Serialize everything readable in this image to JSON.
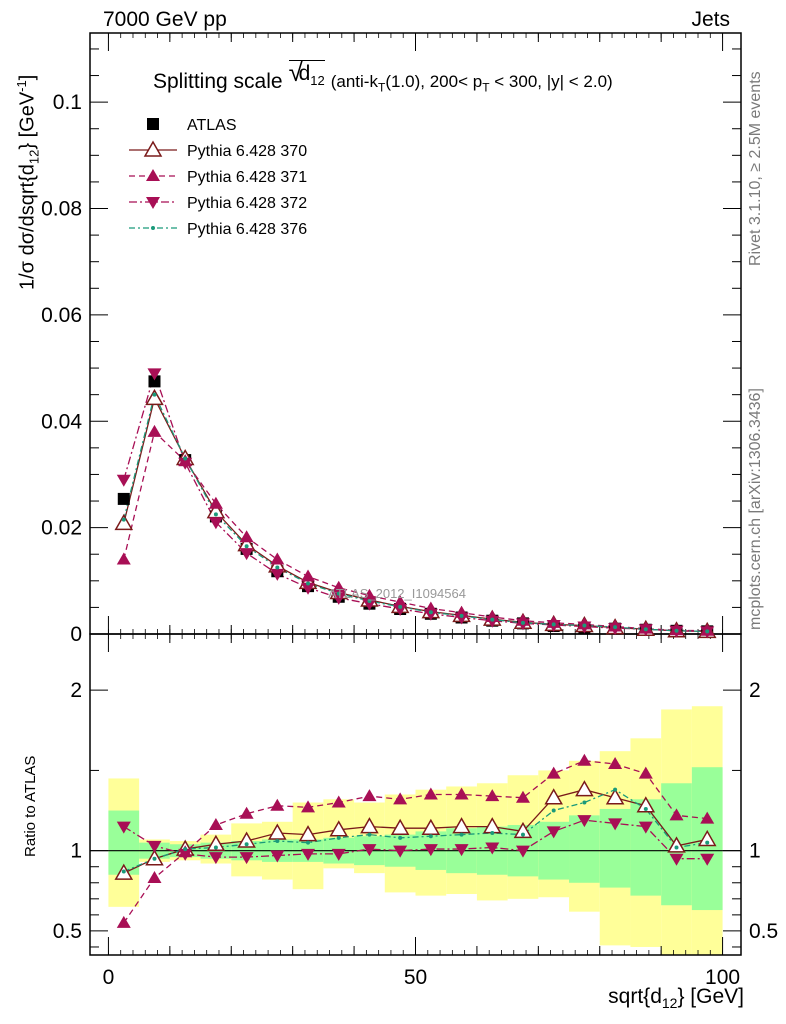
{
  "header": {
    "left": "7000 GeV pp",
    "right": "Jets"
  },
  "side_labels": {
    "rivet": "Rivet 3.1.10, ≥ 2.5M events",
    "mcplots": "mcplots.cern.ch [arXiv:1306.3436]"
  },
  "watermark": "ATLAS_2012_I1094564",
  "colors": {
    "atlas": "#000000",
    "p370": "#7a1a1a",
    "p371": "#a80f55",
    "p372": "#a80f55",
    "p376": "#1a9a7a",
    "band_inner": "#99ff99",
    "band_outer": "#ffff99"
  },
  "chart_data": {
    "type": "line",
    "title": {
      "main": "Splitting scale",
      "sqrt_arg": "d",
      "sqrt_sub": "12",
      "details_pre": "(anti-k",
      "kt_sub": "T",
      "details_mid": "(1.0), 200< p",
      "pt_sub": "T",
      "details_post": " < 300, |y| < 2.0)"
    },
    "xlabel": {
      "main": "sqrt{d",
      "sub": "12",
      "post": "} [GeV]"
    },
    "ylabel": {
      "main": "1/σ dσ/dsqrt{d",
      "sub": "12",
      "post": "} [GeV",
      "sup": "-1",
      "end": "]"
    },
    "ratio_ylabel": "Ratio to ATLAS",
    "xlim": [
      -3,
      103
    ],
    "ylim": [
      0,
      0.113
    ],
    "ratio_ylim": [
      0.35,
      2.35
    ],
    "xticks": [
      "0",
      "50",
      "100"
    ],
    "yticks": [
      "0",
      "0.02",
      "0.04",
      "0.06",
      "0.08",
      "0.1"
    ],
    "ratio_yticks": [
      "0.5",
      "1",
      "2"
    ],
    "legend_position": "top-left",
    "x": [
      2.5,
      7.5,
      12.5,
      17.5,
      22.5,
      27.5,
      32.5,
      37.5,
      42.5,
      47.5,
      52.5,
      57.5,
      62.5,
      67.5,
      72.5,
      77.5,
      82.5,
      87.5,
      92.5,
      97.5
    ],
    "series": [
      {
        "name": "ATLAS",
        "key": "atlas",
        "values": [
          0.0254,
          0.0475,
          0.0327,
          0.0221,
          0.016,
          0.0118,
          0.009,
          0.007,
          0.0057,
          0.0047,
          0.0038,
          0.0031,
          0.0025,
          0.002,
          0.0015,
          0.0012,
          0.001,
          0.0008,
          0.0006,
          0.0005
        ]
      },
      {
        "name": "Pythia 6.428 370",
        "key": "p370",
        "values": [
          0.0208,
          0.0443,
          0.033,
          0.023,
          0.0168,
          0.0128,
          0.0097,
          0.0078,
          0.0064,
          0.0052,
          0.0042,
          0.0035,
          0.0028,
          0.0022,
          0.0018,
          0.0016,
          0.0012,
          0.0009,
          0.0006,
          0.0005
        ]
      },
      {
        "name": "Pythia 6.428 371",
        "key": "p371",
        "values": [
          0.014,
          0.038,
          0.0325,
          0.0245,
          0.0182,
          0.014,
          0.0108,
          0.0087,
          0.0072,
          0.006,
          0.0048,
          0.004,
          0.0032,
          0.0025,
          0.0021,
          0.0018,
          0.0014,
          0.001,
          0.0007,
          0.0006
        ]
      },
      {
        "name": "Pythia 6.428 372",
        "key": "p372",
        "values": [
          0.029,
          0.049,
          0.0322,
          0.021,
          0.0152,
          0.0113,
          0.0087,
          0.0068,
          0.0057,
          0.0047,
          0.0038,
          0.0031,
          0.0025,
          0.002,
          0.0017,
          0.0014,
          0.0011,
          0.0009,
          0.0006,
          0.0005
        ]
      },
      {
        "name": "Pythia 6.428 376",
        "key": "p376",
        "values": [
          0.0215,
          0.045,
          0.033,
          0.0225,
          0.0165,
          0.0125,
          0.0095,
          0.0076,
          0.0062,
          0.0051,
          0.0041,
          0.0034,
          0.0027,
          0.0021,
          0.0018,
          0.0016,
          0.0013,
          0.0009,
          0.0006,
          0.0005
        ]
      }
    ],
    "ratio": {
      "p370": [
        0.86,
        0.95,
        1.01,
        1.04,
        1.06,
        1.11,
        1.1,
        1.13,
        1.15,
        1.14,
        1.14,
        1.15,
        1.15,
        1.12,
        1.33,
        1.38,
        1.33,
        1.28,
        1.03,
        1.07
      ],
      "p371": [
        0.55,
        0.83,
        0.99,
        1.16,
        1.23,
        1.28,
        1.27,
        1.3,
        1.34,
        1.32,
        1.35,
        1.35,
        1.34,
        1.33,
        1.48,
        1.56,
        1.54,
        1.48,
        1.22,
        1.2
      ],
      "p372": [
        1.15,
        1.03,
        0.98,
        0.96,
        0.96,
        0.97,
        0.98,
        0.98,
        1.01,
        1.0,
        1.01,
        1.01,
        1.02,
        1.0,
        1.12,
        1.19,
        1.17,
        1.15,
        0.95,
        0.95
      ],
      "p376": [
        0.87,
        0.95,
        1.01,
        1.02,
        1.04,
        1.06,
        1.05,
        1.08,
        1.1,
        1.08,
        1.09,
        1.1,
        1.11,
        1.1,
        1.25,
        1.3,
        1.38,
        1.26,
        1.02,
        1.05
      ],
      "band_inner_lo": [
        0.85,
        0.95,
        0.96,
        0.95,
        0.94,
        0.93,
        0.93,
        0.92,
        0.91,
        0.9,
        0.88,
        0.86,
        0.85,
        0.84,
        0.82,
        0.8,
        0.77,
        0.72,
        0.66,
        0.63
      ],
      "band_inner_hi": [
        1.25,
        1.05,
        1.04,
        1.05,
        1.06,
        1.07,
        1.07,
        1.08,
        1.09,
        1.1,
        1.12,
        1.14,
        1.15,
        1.16,
        1.18,
        1.22,
        1.26,
        1.32,
        1.42,
        1.52
      ],
      "band_outer_lo": [
        0.65,
        0.93,
        0.94,
        0.92,
        0.84,
        0.82,
        0.76,
        0.89,
        0.86,
        0.74,
        0.72,
        0.73,
        0.69,
        0.7,
        0.71,
        0.62,
        0.41,
        0.4,
        0.35,
        0.35
      ],
      "band_outer_hi": [
        1.45,
        1.07,
        1.06,
        1.1,
        1.17,
        1.18,
        1.3,
        1.32,
        1.3,
        1.35,
        1.38,
        1.4,
        1.42,
        1.47,
        1.5,
        1.56,
        1.62,
        1.7,
        1.88,
        1.9
      ]
    }
  }
}
